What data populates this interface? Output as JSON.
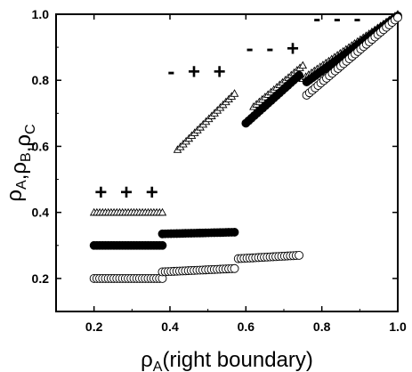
{
  "chart_data": {
    "type": "scatter",
    "xlabel": {
      "main": "ρ",
      "sub": "A",
      "rest": "(right boundary)"
    },
    "ylabel": {
      "parts": [
        {
          "main": "ρ",
          "sub": "A"
        },
        {
          "main": ",ρ",
          "sub": "B"
        },
        {
          "main": ",ρ",
          "sub": "C"
        }
      ]
    },
    "xlim": [
      0.1,
      1.0
    ],
    "ylim": [
      0.1,
      1.0
    ],
    "xticks": [
      0.2,
      0.4,
      0.6,
      0.8,
      1.0
    ],
    "yticks": [
      0.2,
      0.4,
      0.6,
      0.8,
      1.0
    ],
    "xtick_labels": [
      "0.2",
      "0.4",
      "0.6",
      "0.8",
      "1.0"
    ],
    "ytick_labels": [
      "0.2",
      "0.4",
      "0.6",
      "0.8",
      "1.0"
    ],
    "grid": false,
    "annotations": [
      {
        "text": "+ + +",
        "x": 0.29,
        "y": 0.44
      },
      {
        "text": "- + +",
        "x": 0.475,
        "y": 0.805
      },
      {
        "text": "- - +",
        "x": 0.675,
        "y": 0.875
      },
      {
        "text": "- - -",
        "x": 0.845,
        "y": 0.965
      }
    ],
    "series": [
      {
        "marker": "triangle-open",
        "segments": [
          {
            "x": [
              0.2,
              0.38
            ],
            "y": [
              0.4,
              0.4
            ]
          },
          {
            "x": [
              0.42,
              0.57
            ],
            "y": [
              0.59,
              0.76
            ]
          },
          {
            "x": [
              0.62,
              0.75
            ],
            "y": [
              0.72,
              0.845
            ]
          },
          {
            "x": [
              0.75,
              1.0
            ],
            "y": [
              0.805,
              1.0
            ]
          }
        ]
      },
      {
        "marker": "circle-filled",
        "segments": [
          {
            "x": [
              0.2,
              0.38
            ],
            "y": [
              0.3,
              0.3
            ]
          },
          {
            "x": [
              0.38,
              0.57
            ],
            "y": [
              0.335,
              0.34
            ]
          },
          {
            "x": [
              0.6,
              0.74
            ],
            "y": [
              0.67,
              0.815
            ]
          },
          {
            "x": [
              0.76,
              1.0
            ],
            "y": [
              0.795,
              0.995
            ]
          }
        ]
      },
      {
        "marker": "circle-open",
        "segments": [
          {
            "x": [
              0.2,
              0.38
            ],
            "y": [
              0.2,
              0.2
            ]
          },
          {
            "x": [
              0.38,
              0.57
            ],
            "y": [
              0.22,
              0.23
            ]
          },
          {
            "x": [
              0.58,
              0.74
            ],
            "y": [
              0.26,
              0.27
            ]
          },
          {
            "x": [
              0.76,
              1.0
            ],
            "y": [
              0.755,
              0.99
            ]
          }
        ]
      }
    ]
  }
}
